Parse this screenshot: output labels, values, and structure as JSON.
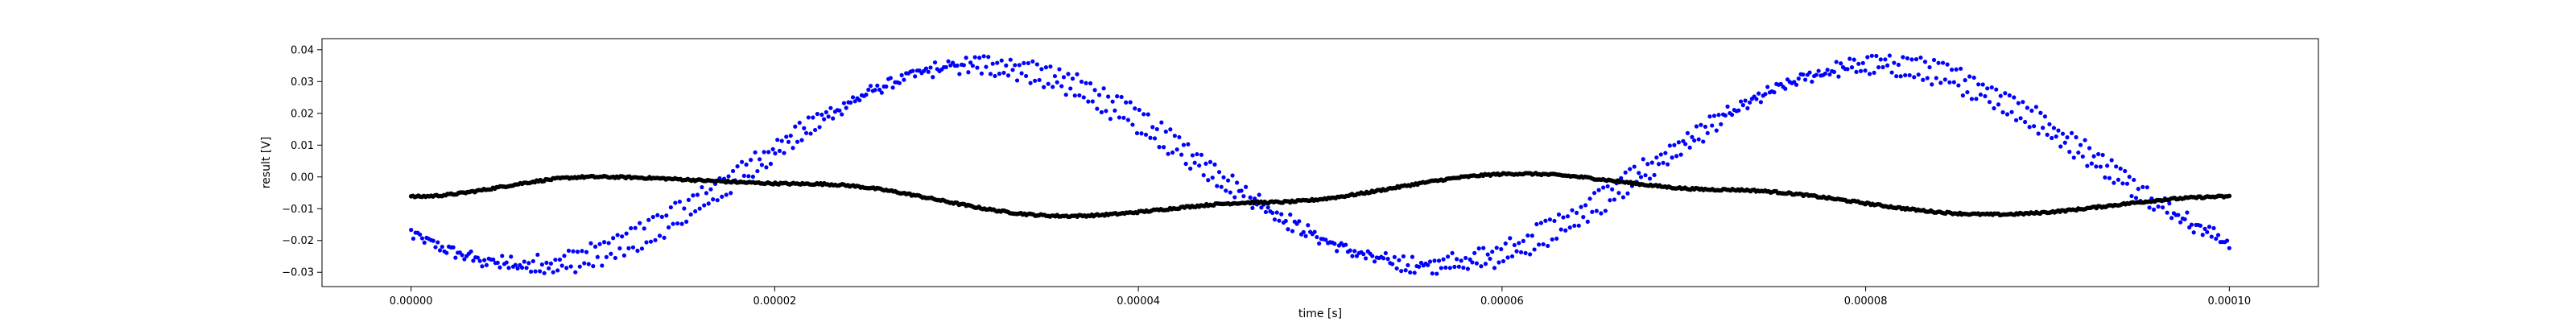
{
  "chart_data": {
    "type": "scatter",
    "xlabel": "time [s]",
    "ylabel": "result [V]",
    "xlim": [
      -4.9e-06,
      0.0001049
    ],
    "ylim": [
      -0.0345,
      0.0435
    ],
    "grid": false,
    "x_ticks": [
      0.0,
      2e-05,
      4e-05,
      6e-05,
      8e-05,
      0.0001
    ],
    "x_tick_labels": [
      "0.00000",
      "0.00002",
      "0.00004",
      "0.00006",
      "0.00008",
      "0.00010"
    ],
    "y_ticks": [
      -0.03,
      -0.02,
      -0.01,
      0.0,
      0.01,
      0.02,
      0.03,
      0.04
    ],
    "y_tick_labels": [
      "−0.03",
      "−0.02",
      "−0.01",
      "0.00",
      "0.01",
      "0.02",
      "0.03",
      "0.04"
    ],
    "x_range": [
      0.0,
      0.0001
    ],
    "series": [
      {
        "color": "#0000ff",
        "marker": "dot",
        "description_points": [
          {
            "x": 0.0,
            "y": -0.02
          },
          {
            "x": 6.3e-06,
            "y": -0.026
          },
          {
            "x": 1.8e-05,
            "y": 0.0
          },
          {
            "x": 3.1e-05,
            "y": 0.035
          },
          {
            "x": 4.5e-05,
            "y": -0.009
          },
          {
            "x": 5.6e-05,
            "y": -0.025
          },
          {
            "x": 6.8e-05,
            "y": 0.0
          },
          {
            "x": 8e-05,
            "y": 0.036
          },
          {
            "x": 0.0001,
            "y": -0.016
          }
        ],
        "model": {
          "amplitude": 0.0315,
          "period": 4.95e-05,
          "phase_peak": 3.12e-05,
          "offset": 0.0037,
          "branch_spread": 0.0055,
          "points": 820
        }
      },
      {
        "color": "#000000",
        "marker": "dot",
        "description_points": [
          {
            "x": 0.0,
            "y": -0.0062
          },
          {
            "x": 1e-05,
            "y": 0.0
          },
          {
            "x": 2.2e-05,
            "y": -0.0022
          },
          {
            "x": 3.6e-05,
            "y": -0.0123
          },
          {
            "x": 4.7e-05,
            "y": -0.008
          },
          {
            "x": 6.1e-05,
            "y": 0.001
          },
          {
            "x": 7.2e-05,
            "y": -0.004
          },
          {
            "x": 8.7e-05,
            "y": -0.0118
          },
          {
            "x": 0.0001,
            "y": -0.0062
          }
        ],
        "points": 1000
      }
    ]
  }
}
